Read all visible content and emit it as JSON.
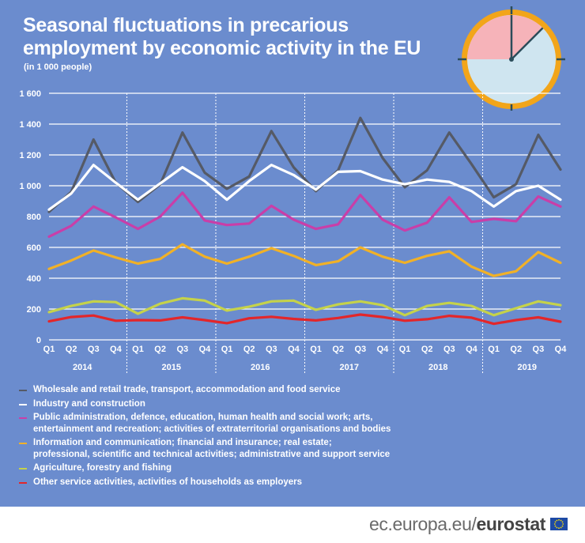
{
  "title": "Seasonal fluctuations in precarious employment by economic activity in the EU",
  "subtitle": "(in 1 000 people)",
  "footer": {
    "domain": "ec.europa.eu/",
    "brand": "eurostat"
  },
  "colors": {
    "background": "#6b8cce",
    "grid": "#ffffff",
    "clock_ring": "#f2a51a",
    "clock_face": "#cfe5f0",
    "clock_wedge": "#f6b3b9",
    "clock_hands": "#2b4c5a"
  },
  "chart_data": {
    "type": "line",
    "title": "Seasonal fluctuations in precarious employment by economic activity in the EU",
    "ylabel": "in 1 000 people",
    "ylim": [
      0,
      1600
    ],
    "yticks": [
      0,
      200,
      400,
      600,
      800,
      "1 000",
      "1 200",
      "1 400",
      "1 600"
    ],
    "ytick_values": [
      0,
      200,
      400,
      600,
      800,
      1000,
      1200,
      1400,
      1600
    ],
    "quarters": [
      "Q1",
      "Q2",
      "Q3",
      "Q4",
      "Q1",
      "Q2",
      "Q3",
      "Q4",
      "Q1",
      "Q2",
      "Q3",
      "Q4",
      "Q1",
      "Q2",
      "Q3",
      "Q4",
      "Q1",
      "Q2",
      "Q3",
      "Q4",
      "Q1",
      "Q2",
      "Q3",
      "Q4"
    ],
    "years": [
      "2014",
      "2015",
      "2016",
      "2017",
      "2018",
      "2019"
    ],
    "grid": true,
    "series": [
      {
        "name": "Wholesale and retail trade, transport, accommodation and food service",
        "color": "#555a66",
        "values": [
          830,
          960,
          1300,
          1020,
          895,
          1010,
          1345,
          1085,
          980,
          1060,
          1355,
          1120,
          965,
          1100,
          1440,
          1180,
          990,
          1100,
          1345,
          1140,
          925,
          1010,
          1330,
          1105
        ]
      },
      {
        "name": "Industry and construction",
        "color": "#ffffff",
        "values": [
          845,
          950,
          1135,
          1020,
          910,
          1015,
          1120,
          1030,
          910,
          1030,
          1135,
          1070,
          975,
          1090,
          1095,
          1040,
          1010,
          1040,
          1025,
          965,
          865,
          965,
          1000,
          910
        ]
      },
      {
        "name": "Public administration, defence, education, human health and social work; arts,\nentertainment and recreation; activities of extraterritorial organisations and bodies",
        "color": "#c93ea8",
        "values": [
          670,
          740,
          865,
          795,
          720,
          800,
          955,
          775,
          745,
          755,
          870,
          780,
          720,
          750,
          940,
          780,
          710,
          760,
          925,
          765,
          785,
          770,
          930,
          865
        ]
      },
      {
        "name": "Information and communication; financial and insurance; real estate;\nprofessional, scientific and technical activities; administrative and support service",
        "color": "#f1b127",
        "values": [
          460,
          515,
          580,
          535,
          495,
          525,
          620,
          540,
          495,
          540,
          595,
          545,
          485,
          510,
          600,
          540,
          500,
          545,
          575,
          475,
          415,
          445,
          570,
          500
        ]
      },
      {
        "name": "Agriculture, forestry and fishing",
        "color": "#c5d24a",
        "values": [
          180,
          220,
          250,
          245,
          170,
          235,
          270,
          255,
          190,
          215,
          250,
          255,
          195,
          230,
          250,
          225,
          160,
          220,
          240,
          220,
          160,
          205,
          250,
          225
        ]
      },
      {
        "name": "Other service activities, activities of households as employers",
        "color": "#e3262a",
        "values": [
          120,
          148,
          158,
          124,
          128,
          126,
          146,
          128,
          108,
          140,
          150,
          136,
          126,
          142,
          164,
          148,
          124,
          134,
          156,
          144,
          104,
          128,
          146,
          118
        ]
      }
    ]
  }
}
